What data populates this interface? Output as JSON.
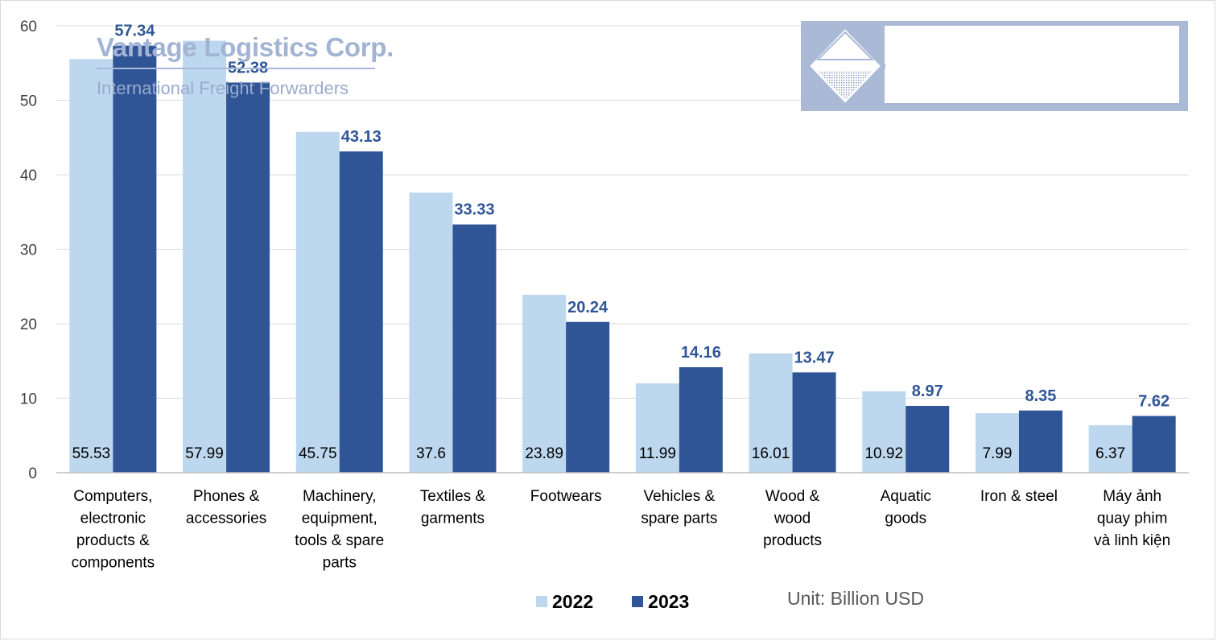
{
  "chart_data": {
    "type": "bar",
    "categories": [
      [
        "Computers,",
        "electronic",
        "products &",
        "components"
      ],
      [
        "Phones &",
        "accessories"
      ],
      [
        "Machinery,",
        "equipment,",
        "tools & spare",
        "parts"
      ],
      [
        "Textiles &",
        "garments"
      ],
      [
        "Footwears"
      ],
      [
        "Vehicles &",
        "spare parts"
      ],
      [
        "Wood &",
        "wood",
        "products"
      ],
      [
        "Aquatic",
        "goods"
      ],
      [
        "Iron & steel"
      ],
      [
        "Máy ảnh",
        "quay phim",
        "và linh kiện"
      ]
    ],
    "series": [
      {
        "name": "2022",
        "color": "#bdd7ee",
        "values": [
          55.53,
          57.99,
          45.75,
          37.6,
          23.89,
          11.99,
          16.01,
          10.92,
          7.99,
          6.37
        ],
        "labels": [
          "55.53",
          "57.99",
          "45.75",
          "37.6",
          "23.89",
          "11.99",
          "16.01",
          "10.92",
          "7.99",
          "6.37"
        ]
      },
      {
        "name": "2023",
        "color": "#2f5597",
        "values": [
          57.34,
          52.38,
          43.13,
          33.33,
          20.24,
          14.16,
          13.47,
          8.97,
          8.35,
          7.62
        ],
        "labels": [
          "57.34",
          "52.38",
          "43.13",
          "33.33",
          "20.24",
          "14.16",
          "13.47",
          "8.97",
          "8.35",
          "7.62"
        ]
      }
    ],
    "ylim": [
      0,
      60
    ],
    "yticks": [
      0,
      10,
      20,
      30,
      40,
      50,
      60
    ],
    "grid": true,
    "legend": "bottom",
    "unit_note": "Unit: Billion USD"
  },
  "logo": {
    "name": "Vantage Logistics Corp.",
    "tagline": "International Freight Forwarders",
    "color": "#a9b9d6"
  }
}
